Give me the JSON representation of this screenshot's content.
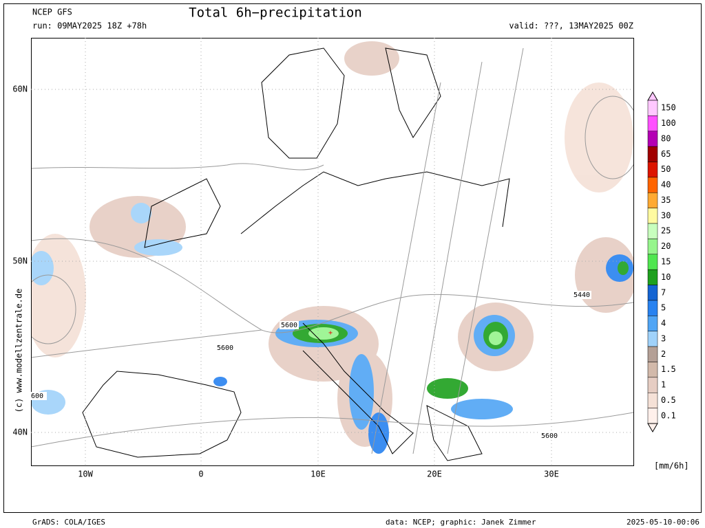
{
  "header": {
    "model": "NCEP GFS",
    "run": "run: 09MAY2025 18Z +78h",
    "title": "Total 6h−precipitation",
    "valid": "valid: ???, 13MAY2025 00Z"
  },
  "map": {
    "lat_labels": [
      "60N",
      "50N",
      "40N"
    ],
    "lon_labels": [
      "10W",
      "0",
      "10E",
      "20E",
      "30E"
    ],
    "contour_labels": [
      "5600",
      "5600",
      "5440",
      "5600",
      "600"
    ],
    "credit": "(c) www.modellzentrale.de"
  },
  "legend": {
    "unit": "[mm/6h]",
    "levels": [
      {
        "value": 150,
        "color": "#ffc8ff"
      },
      {
        "value": 100,
        "color": "#ff50ff"
      },
      {
        "value": 80,
        "color": "#b400b4"
      },
      {
        "value": 65,
        "color": "#a00000"
      },
      {
        "value": 50,
        "color": "#dc1400"
      },
      {
        "value": 40,
        "color": "#ff6400"
      },
      {
        "value": 35,
        "color": "#ffaa32"
      },
      {
        "value": 30,
        "color": "#fffaa0"
      },
      {
        "value": 25,
        "color": "#c8ffbe"
      },
      {
        "value": 20,
        "color": "#96f58c"
      },
      {
        "value": 15,
        "color": "#50e650"
      },
      {
        "value": 10,
        "color": "#1ea01e"
      },
      {
        "value": 7,
        "color": "#1464d2"
      },
      {
        "value": 5,
        "color": "#2882f0"
      },
      {
        "value": 4,
        "color": "#50a5f5"
      },
      {
        "value": 3,
        "color": "#a0d2fa"
      },
      {
        "value": 2,
        "color": "#b4a096"
      },
      {
        "value": 1.5,
        "color": "#d2b9aa"
      },
      {
        "value": 1,
        "color": "#e6cdc3"
      },
      {
        "value": 0.5,
        "color": "#f5e1d7"
      },
      {
        "value": 0.1,
        "color": "#fff0eb"
      }
    ]
  },
  "footer": {
    "software": "GrADS: COLA/IGES",
    "source": "data: NCEP; graphic: Janek Zimmer",
    "timestamp": "2025-05-10-00:06"
  }
}
